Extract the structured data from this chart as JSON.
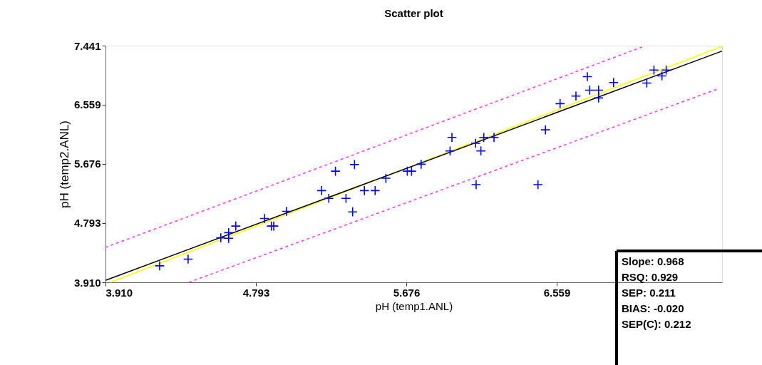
{
  "chart_data": {
    "type": "scatter",
    "title": "Scatter plot",
    "xlabel": "pH (temp1.ANL)",
    "ylabel": "pH (temp2.ANL)",
    "xlim": [
      3.91,
      7.53
    ],
    "ylim": [
      3.91,
      7.441
    ],
    "xticks": [
      {
        "value": 3.91,
        "label": "3.910"
      },
      4.793,
      5.676,
      6.559
    ],
    "yticks": [
      {
        "value": 3.91,
        "label": "3.910"
      },
      4.793,
      5.676,
      6.559,
      7.441
    ],
    "grid": false,
    "series": [
      {
        "type": "line",
        "color": "#ffff00",
        "x": [
          3.94,
          7.53
        ],
        "values": [
          3.91,
          7.43
        ],
        "line_style": "solid",
        "marker": "none"
      },
      {
        "type": "line",
        "color": "#000000",
        "x": [
          3.91,
          7.53
        ],
        "values": [
          3.94,
          7.36
        ],
        "line_style": "solid",
        "marker": "none"
      },
      {
        "type": "line",
        "color": "#ff33ff",
        "x": [
          3.91,
          7.06
        ],
        "values": [
          4.43,
          7.42
        ],
        "line_style": "dashed",
        "marker": "none"
      },
      {
        "type": "line",
        "color": "#ff33ff",
        "x": [
          4.4,
          7.5
        ],
        "values": [
          3.91,
          6.79
        ],
        "line_style": "dashed",
        "marker": "none"
      },
      {
        "color": "#0000ff",
        "marker": "cross",
        "x": [
          4.228,
          4.395,
          4.587,
          4.633,
          4.633,
          4.675,
          4.844,
          4.884,
          4.898,
          4.973,
          5.179,
          5.221,
          5.26,
          5.322,
          5.361,
          5.372,
          5.43,
          5.493,
          5.556,
          5.682,
          5.707,
          5.763,
          5.944,
          5.933,
          6.083,
          6.114,
          6.131,
          6.191,
          6.086,
          6.449,
          6.493,
          6.579,
          6.672,
          6.739,
          6.753,
          6.805,
          6.805,
          6.893,
          7.088,
          7.13,
          7.177,
          7.202
        ],
        "values": [
          4.156,
          4.256,
          4.573,
          4.651,
          4.566,
          4.749,
          4.862,
          4.749,
          4.749,
          4.968,
          5.278,
          5.162,
          5.568,
          5.162,
          4.961,
          5.666,
          5.278,
          5.278,
          5.462,
          5.568,
          5.568,
          5.672,
          6.071,
          5.87,
          5.984,
          5.87,
          6.071,
          6.071,
          5.367,
          5.367,
          6.185,
          6.576,
          6.689,
          6.978,
          6.777,
          6.777,
          6.661,
          6.89,
          6.883,
          7.077,
          6.989,
          7.077
        ]
      }
    ],
    "annotations": [
      "Slope: 0.968",
      "RSQ: 0.929",
      "SEP: 0.211",
      "BIAS: -0.020",
      "SEP(C): 0.212"
    ]
  }
}
